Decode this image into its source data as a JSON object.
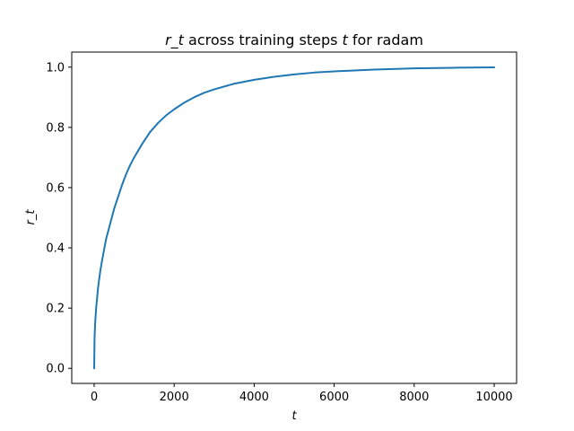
{
  "chart_data": {
    "type": "line",
    "title": "r_t across training steps t for radam",
    "title_parts": {
      "var1": "r_t",
      "mid": " across training steps ",
      "var2": "t",
      "tail": " for radam"
    },
    "xlabel": "t",
    "ylabel": "r_t",
    "xlim": [
      -560,
      10560
    ],
    "ylim": [
      -0.05,
      1.05
    ],
    "x_ticks": [
      0,
      2000,
      4000,
      6000,
      8000,
      10000
    ],
    "x_tick_labels": [
      "0",
      "2000",
      "4000",
      "6000",
      "8000",
      "10000"
    ],
    "y_ticks": [
      0.0,
      0.2,
      0.4,
      0.6,
      0.8,
      1.0
    ],
    "y_tick_labels": [
      "0.0",
      "0.2",
      "0.4",
      "0.6",
      "0.8",
      "1.0"
    ],
    "grid": false,
    "series": [
      {
        "name": "r_t",
        "color": "#1f77b4",
        "x": [
          1,
          10,
          25,
          50,
          100,
          150,
          200,
          300,
          400,
          500,
          600,
          700,
          800,
          900,
          1000,
          1200,
          1400,
          1600,
          1800,
          2000,
          2250,
          2500,
          2750,
          3000,
          3500,
          4000,
          4500,
          5000,
          5500,
          6000,
          7000,
          8000,
          9000,
          10000
        ],
        "values": [
          0.0,
          0.1,
          0.15,
          0.2,
          0.27,
          0.32,
          0.36,
          0.43,
          0.48,
          0.53,
          0.57,
          0.61,
          0.645,
          0.675,
          0.7,
          0.745,
          0.785,
          0.815,
          0.84,
          0.86,
          0.882,
          0.9,
          0.915,
          0.926,
          0.945,
          0.958,
          0.968,
          0.976,
          0.982,
          0.986,
          0.992,
          0.996,
          0.998,
          0.9995
        ]
      }
    ]
  }
}
